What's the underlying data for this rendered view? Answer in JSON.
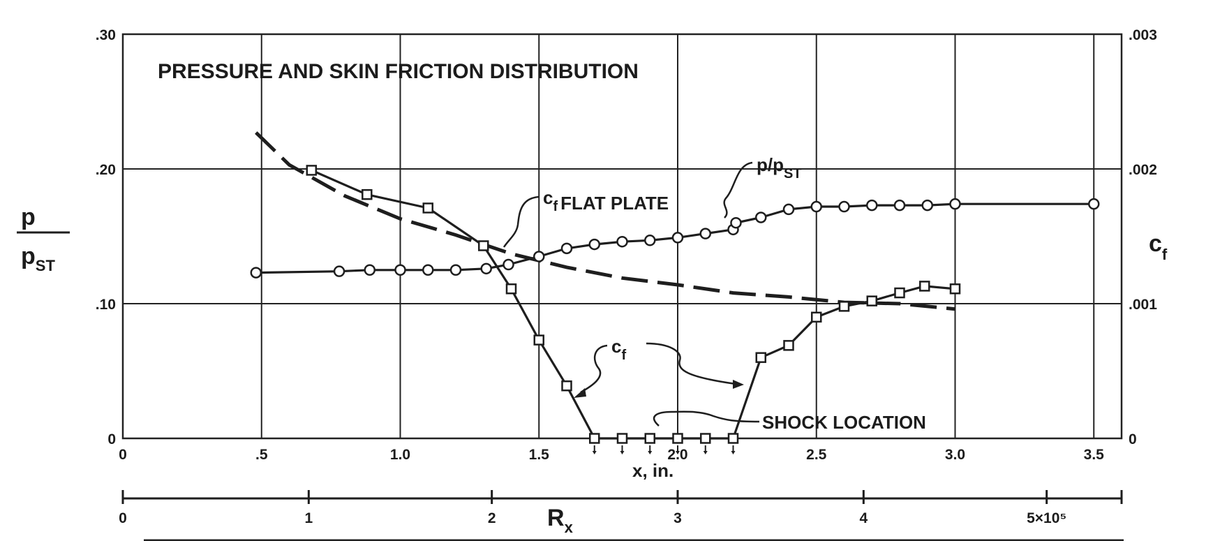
{
  "chart_data": {
    "type": "line",
    "title": "PRESSURE AND SKIN FRICTION DISTRIBUTION",
    "xlabel": "x, in.",
    "secondary_xlabel": "R",
    "secondary_xlabel_sub": "x",
    "left_ylabel": {
      "num": "p",
      "den": "p",
      "den_sub": "ST"
    },
    "right_ylabel": {
      "main": "c",
      "sub": "f"
    },
    "xlim": [
      0,
      3.6
    ],
    "ylim_left": [
      0,
      0.3
    ],
    "ylim_right": [
      0,
      0.003
    ],
    "x_ticks": [
      {
        "v": 0,
        "label": "0"
      },
      {
        "v": 0.5,
        "label": ".5"
      },
      {
        "v": 1.0,
        "label": "1.0"
      },
      {
        "v": 1.5,
        "label": "1.5"
      },
      {
        "v": 2.0,
        "label": "2.0"
      },
      {
        "v": 2.5,
        "label": "2.5"
      },
      {
        "v": 3.0,
        "label": "3.0"
      },
      {
        "v": 3.5,
        "label": "3.5"
      }
    ],
    "y_left_ticks": [
      {
        "v": 0,
        "label": "0"
      },
      {
        "v": 0.1,
        "label": ".10"
      },
      {
        "v": 0.2,
        "label": ".20"
      },
      {
        "v": 0.3,
        "label": ".30"
      }
    ],
    "y_right_ticks": [
      {
        "v": 0,
        "label": "0"
      },
      {
        "v": 0.001,
        "label": ".001"
      },
      {
        "v": 0.002,
        "label": ".002"
      },
      {
        "v": 0.003,
        "label": ".003"
      }
    ],
    "rx_ticks": [
      {
        "x": 0,
        "label": "0"
      },
      {
        "x": 0.67,
        "label": "1"
      },
      {
        "x": 1.33,
        "label": "2"
      },
      {
        "x": 2.0,
        "label": "3"
      },
      {
        "x": 2.67,
        "label": "4"
      },
      {
        "x": 3.33,
        "label": "5×10⁵"
      }
    ],
    "grid": true,
    "series": [
      {
        "marker": "circle",
        "axis": "left",
        "label": "p/p",
        "label_sub": "ST",
        "points": [
          [
            0.48,
            0.123
          ],
          [
            0.78,
            0.124
          ],
          [
            0.89,
            0.125
          ],
          [
            1.0,
            0.125
          ],
          [
            1.1,
            0.125
          ],
          [
            1.2,
            0.125
          ],
          [
            1.31,
            0.126
          ],
          [
            1.39,
            0.129
          ],
          [
            1.5,
            0.135
          ],
          [
            1.6,
            0.141
          ],
          [
            1.7,
            0.144
          ],
          [
            1.8,
            0.146
          ],
          [
            1.9,
            0.147
          ],
          [
            2.0,
            0.149
          ],
          [
            2.1,
            0.152
          ],
          [
            2.2,
            0.155
          ],
          [
            2.21,
            0.16
          ],
          [
            2.3,
            0.164
          ],
          [
            2.4,
            0.17
          ],
          [
            2.5,
            0.172
          ],
          [
            2.6,
            0.172
          ],
          [
            2.7,
            0.173
          ],
          [
            2.8,
            0.173
          ],
          [
            2.9,
            0.173
          ],
          [
            3.0,
            0.174
          ],
          [
            3.5,
            0.174
          ]
        ]
      },
      {
        "marker": "square",
        "axis": "right",
        "label": "c",
        "label_sub": "f",
        "points": [
          [
            0.68,
            0.00199
          ],
          [
            0.88,
            0.00181
          ],
          [
            1.1,
            0.00171
          ],
          [
            1.3,
            0.00143
          ],
          [
            1.4,
            0.00111
          ],
          [
            1.5,
            0.00073
          ],
          [
            1.6,
            0.00039
          ],
          [
            1.7,
            0.0
          ],
          [
            1.8,
            0.0
          ],
          [
            1.9,
            0.0
          ],
          [
            2.0,
            0.0
          ],
          [
            2.1,
            0.0
          ],
          [
            2.2,
            0.0
          ],
          [
            2.3,
            0.0006
          ],
          [
            2.4,
            0.00069
          ],
          [
            2.5,
            0.0009
          ],
          [
            2.6,
            0.00098
          ],
          [
            2.7,
            0.00102
          ],
          [
            2.8,
            0.00108
          ],
          [
            2.89,
            0.00113
          ],
          [
            3.0,
            0.00111
          ]
        ]
      },
      {
        "style": "dashed",
        "axis": "right",
        "label": "c",
        "label_sub": "f",
        "label_suffix": "FLAT PLATE",
        "points": [
          [
            0.48,
            0.00227
          ],
          [
            0.6,
            0.00203
          ],
          [
            0.8,
            0.0018
          ],
          [
            1.0,
            0.00163
          ],
          [
            1.2,
            0.00151
          ],
          [
            1.4,
            0.00137
          ],
          [
            1.6,
            0.00127
          ],
          [
            1.8,
            0.00119
          ],
          [
            2.0,
            0.00114
          ],
          [
            2.2,
            0.00108
          ],
          [
            2.4,
            0.00105
          ],
          [
            2.6,
            0.00101
          ],
          [
            2.8,
            0.001
          ],
          [
            3.0,
            0.00096
          ]
        ]
      }
    ],
    "annotations": {
      "shock_location": "SHOCK LOCATION"
    }
  }
}
